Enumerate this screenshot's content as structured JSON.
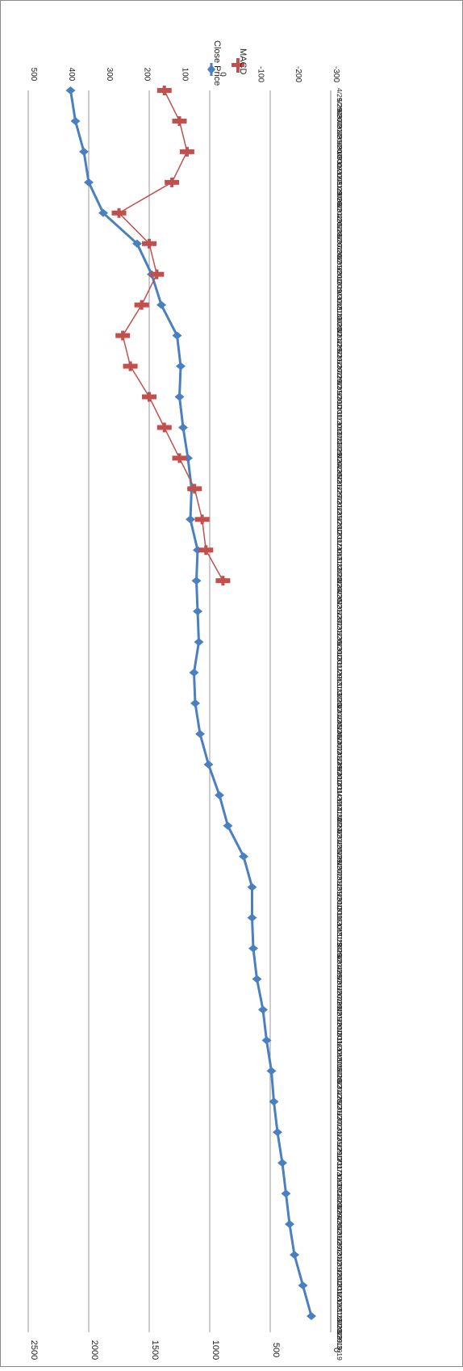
{
  "chart_data": {
    "type": "line",
    "orientation": "rotated-90-clockwise",
    "x": [
      "4/29/2009",
      "7/31/2009",
      "10/30/2009",
      "1/29/2010",
      "4/30/2010",
      "7/30/2010",
      "10/29/2010",
      "1/31/2011",
      "4/29/2011",
      "7/29/2011",
      "10/31/2011",
      "1/31/2012",
      "4/30/2012",
      "7/31/2012",
      "10/31/2012",
      "1/31/2013",
      "4/30/2013",
      "7/31/2013",
      "10/31/2013",
      "1/31/2014",
      "4/30/2014",
      "7/31/2014",
      "10/31/2014",
      "1/30/2015",
      "4/30/2015",
      "7/31/2015",
      "10/30/2015",
      "1/29/2016",
      "4/29/2016",
      "7/29/2016",
      "10/31/2016",
      "1/31/2017",
      "4/28/2017",
      "7/31/2017",
      "10/31/2017",
      "1/31/2018",
      "4/30/2018",
      "7/31/2018",
      "10/31/2018",
      "1/31/2019",
      "3/29/2019"
    ],
    "x_tick_labels": [
      "4/29/2009",
      "5/29/2009",
      "6/30/2009",
      "7/31/2009",
      "8/31/2009",
      "9/30/2009",
      "10/30/2009",
      "11/30/2009",
      "12/31/2009",
      "1/29/2010",
      "2/26/2010",
      "3/31/2010",
      "4/30/2010",
      "5/28/2010",
      "6/30/2010",
      "7/30/2010",
      "8/31/2010",
      "9/30/2010",
      "10/29/2010",
      "11/30/2010",
      "12/31/2010",
      "1/31/2011",
      "2/28/2011",
      "3/31/2011",
      "4/29/2011",
      "5/31/2011",
      "6/30/2011",
      "7/29/2011",
      "8/31/2011",
      "9/30/2011",
      "10/31/2011",
      "11/30/2011",
      "12/30/2011",
      "1/31/2012",
      "2/29/2012",
      "3/30/2012",
      "4/30/2012",
      "5/31/2012",
      "6/29/2012",
      "7/31/2012",
      "8/31/2012",
      "9/28/2012",
      "10/31/2012",
      "11/30/2012",
      "12/31/2012",
      "1/31/2013",
      "2/28/2013",
      "3/28/2013",
      "4/30/2013",
      "5/31/2013",
      "6/28/2013",
      "7/31/2013",
      "8/30/2013",
      "9/30/2013",
      "10/31/2013",
      "11/29/2013",
      "12/31/2013",
      "1/31/2014",
      "2/28/2014",
      "3/31/2014",
      "4/30/2014",
      "5/30/2014",
      "6/30/2014",
      "7/31/2014",
      "8/29/2014",
      "9/30/2014",
      "10/31/2014",
      "11/28/2014",
      "12/31/2014",
      "1/30/2015",
      "2/27/2015",
      "3/31/2015",
      "4/30/2015",
      "5/29/2015",
      "6/30/2015",
      "7/31/2015",
      "8/31/2015",
      "9/30/2015",
      "10/30/2015",
      "11/30/2015",
      "12/31/2015",
      "1/29/2016",
      "2/29/2016",
      "3/31/2016",
      "4/29/2016",
      "5/31/2016",
      "6/30/2016",
      "7/29/2016",
      "8/31/2016",
      "9/30/2016",
      "10/31/2016",
      "11/30/2016",
      "12/30/2016",
      "1/31/2017",
      "2/28/2017",
      "3/31/2017",
      "4/28/2017",
      "5/31/2017",
      "6/30/2017",
      "7/31/2017",
      "8/31/2017",
      "9/29/2017",
      "10/31/2017",
      "11/30/2017",
      "12/29/2017",
      "1/31/2018",
      "2/28/2018",
      "3/29/2018",
      "4/30/2018",
      "5/31/2018",
      "6/29/2018",
      "7/31/2018",
      "8/31/2018",
      "9/28/2018",
      "10/31/2018",
      "11/30/2018",
      "12/31/2018",
      "1/31/2019",
      "2/28/2019",
      "3/29/2019"
    ],
    "series": [
      {
        "name": "Close Price",
        "axis": "left",
        "color": "#4a7fc1",
        "marker": "diamond",
        "values": [
          160,
          230,
          300,
          340,
          370,
          400,
          440,
          470,
          490,
          530,
          560,
          610,
          640,
          650,
          650,
          720,
          850,
          920,
          1010,
          1080,
          1120,
          1130,
          1090,
          1100,
          1110,
          1100,
          1160,
          1150,
          1180,
          1220,
          1250,
          1240,
          1270,
          1400,
          1480,
          1600,
          1880,
          2000,
          2040,
          2110,
          2150
        ]
      },
      {
        "name": "MACD",
        "axis": "right",
        "color": "#c0504d",
        "marker": "bar",
        "values": [
          null,
          null,
          null,
          null,
          null,
          null,
          null,
          null,
          null,
          null,
          null,
          null,
          null,
          null,
          null,
          null,
          null,
          null,
          null,
          null,
          null,
          null,
          null,
          null,
          -15,
          30,
          40,
          60,
          100,
          140,
          180,
          230,
          250,
          200,
          160,
          180,
          260,
          120,
          80,
          100,
          140
        ]
      }
    ],
    "left_axis": {
      "min": 0,
      "max": 2500,
      "ticks": [
        "0",
        "500",
        "1000",
        "1500",
        "2000",
        "2500"
      ]
    },
    "right_axis": {
      "min": -300,
      "max": 500,
      "ticks": [
        "-300",
        "-200",
        "-100",
        "0",
        "100",
        "200",
        "300",
        "400",
        "500"
      ]
    },
    "title": "",
    "xlabel": "",
    "ylabel": "",
    "grid": true,
    "legend": "top-right",
    "legend_entries": [
      "Close Price",
      "MACD"
    ]
  }
}
